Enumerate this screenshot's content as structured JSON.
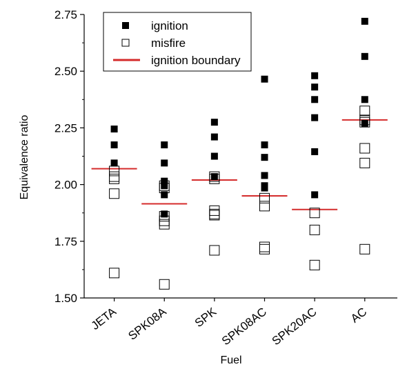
{
  "chart_data": {
    "type": "scatter",
    "title": "",
    "xlabel": "Fuel",
    "ylabel": "Equivalence ratio",
    "categories": [
      "JETA",
      "SPK08A",
      "SPK",
      "SPK08AC",
      "SPK20AC",
      "AC"
    ],
    "ylim": [
      1.5,
      2.75
    ],
    "yticks": [
      "1.50",
      "1.75",
      "2.00",
      "2.25",
      "2.50",
      "2.75"
    ],
    "yticks_values": [
      1.5,
      1.75,
      2.0,
      2.25,
      2.5,
      2.75
    ],
    "grid": false,
    "legend_position": "top-left",
    "colors": {
      "ignition": "#000000",
      "misfire": "#ffffff",
      "boundary": "#d42a2a"
    },
    "series": [
      {
        "name": "ignition",
        "marker": "filled-square",
        "points": [
          {
            "category": "JETA",
            "values": [
              2.245,
              2.175,
              2.095
            ]
          },
          {
            "category": "SPK08A",
            "values": [
              2.175,
              2.095,
              2.015,
              1.995,
              1.955,
              1.87
            ]
          },
          {
            "category": "SPK",
            "values": [
              2.275,
              2.21,
              2.125,
              2.035
            ]
          },
          {
            "category": "SPK08AC",
            "values": [
              2.465,
              2.175,
              2.12,
              2.04,
              1.995,
              1.985
            ]
          },
          {
            "category": "SPK20AC",
            "values": [
              2.48,
              2.43,
              2.375,
              2.295,
              2.145,
              1.955
            ]
          },
          {
            "category": "AC",
            "values": [
              2.72,
              2.565,
              2.375,
              2.27
            ]
          }
        ]
      },
      {
        "name": "misfire",
        "marker": "open-square",
        "points": [
          {
            "category": "JETA",
            "values": [
              2.06,
              2.035,
              2.025,
              1.96,
              1.61
            ]
          },
          {
            "category": "SPK08A",
            "values": [
              1.995,
              1.985,
              1.86,
              1.84,
              1.825,
              1.56
            ]
          },
          {
            "category": "SPK",
            "values": [
              2.035,
              2.025,
              1.885,
              1.87,
              1.865,
              1.71
            ]
          },
          {
            "category": "SPK08AC",
            "values": [
              1.94,
              1.905,
              1.725,
              1.715
            ]
          },
          {
            "category": "SPK20AC",
            "values": [
              1.875,
              1.8,
              1.645
            ]
          },
          {
            "category": "AC",
            "values": [
              2.325,
              2.285,
              2.275,
              2.16,
              2.095,
              1.715
            ]
          }
        ]
      },
      {
        "name": "ignition boundary",
        "marker": "line",
        "values": [
          2.07,
          1.915,
          2.02,
          1.95,
          1.89,
          2.285
        ]
      }
    ]
  }
}
